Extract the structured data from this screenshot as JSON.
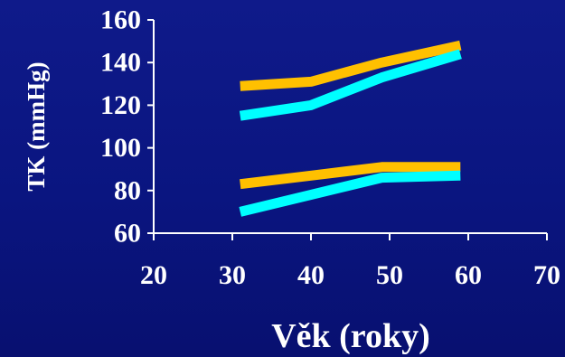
{
  "chart_data": {
    "type": "line",
    "xlabel": "Věk (roky)",
    "ylabel": "TK (mmHg)",
    "xlim": [
      20,
      70
    ],
    "ylim": [
      60,
      160
    ],
    "xticks": [
      20,
      30,
      40,
      50,
      60,
      70
    ],
    "yticks": [
      60,
      80,
      100,
      120,
      140,
      160
    ],
    "grid": false,
    "series": [
      {
        "color": "#ffc000",
        "x": [
          31,
          40,
          49,
          59
        ],
        "values": [
          129,
          131,
          140,
          148
        ]
      },
      {
        "color": "#00ffff",
        "x": [
          31,
          40,
          49,
          59
        ],
        "values": [
          115,
          120,
          133,
          144
        ]
      },
      {
        "color": "#ffc000",
        "x": [
          31,
          40,
          49,
          59
        ],
        "values": [
          83,
          87,
          91,
          91
        ]
      },
      {
        "color": "#00ffff",
        "x": [
          31,
          40,
          49,
          59
        ],
        "values": [
          70,
          78,
          86,
          87
        ]
      }
    ]
  }
}
